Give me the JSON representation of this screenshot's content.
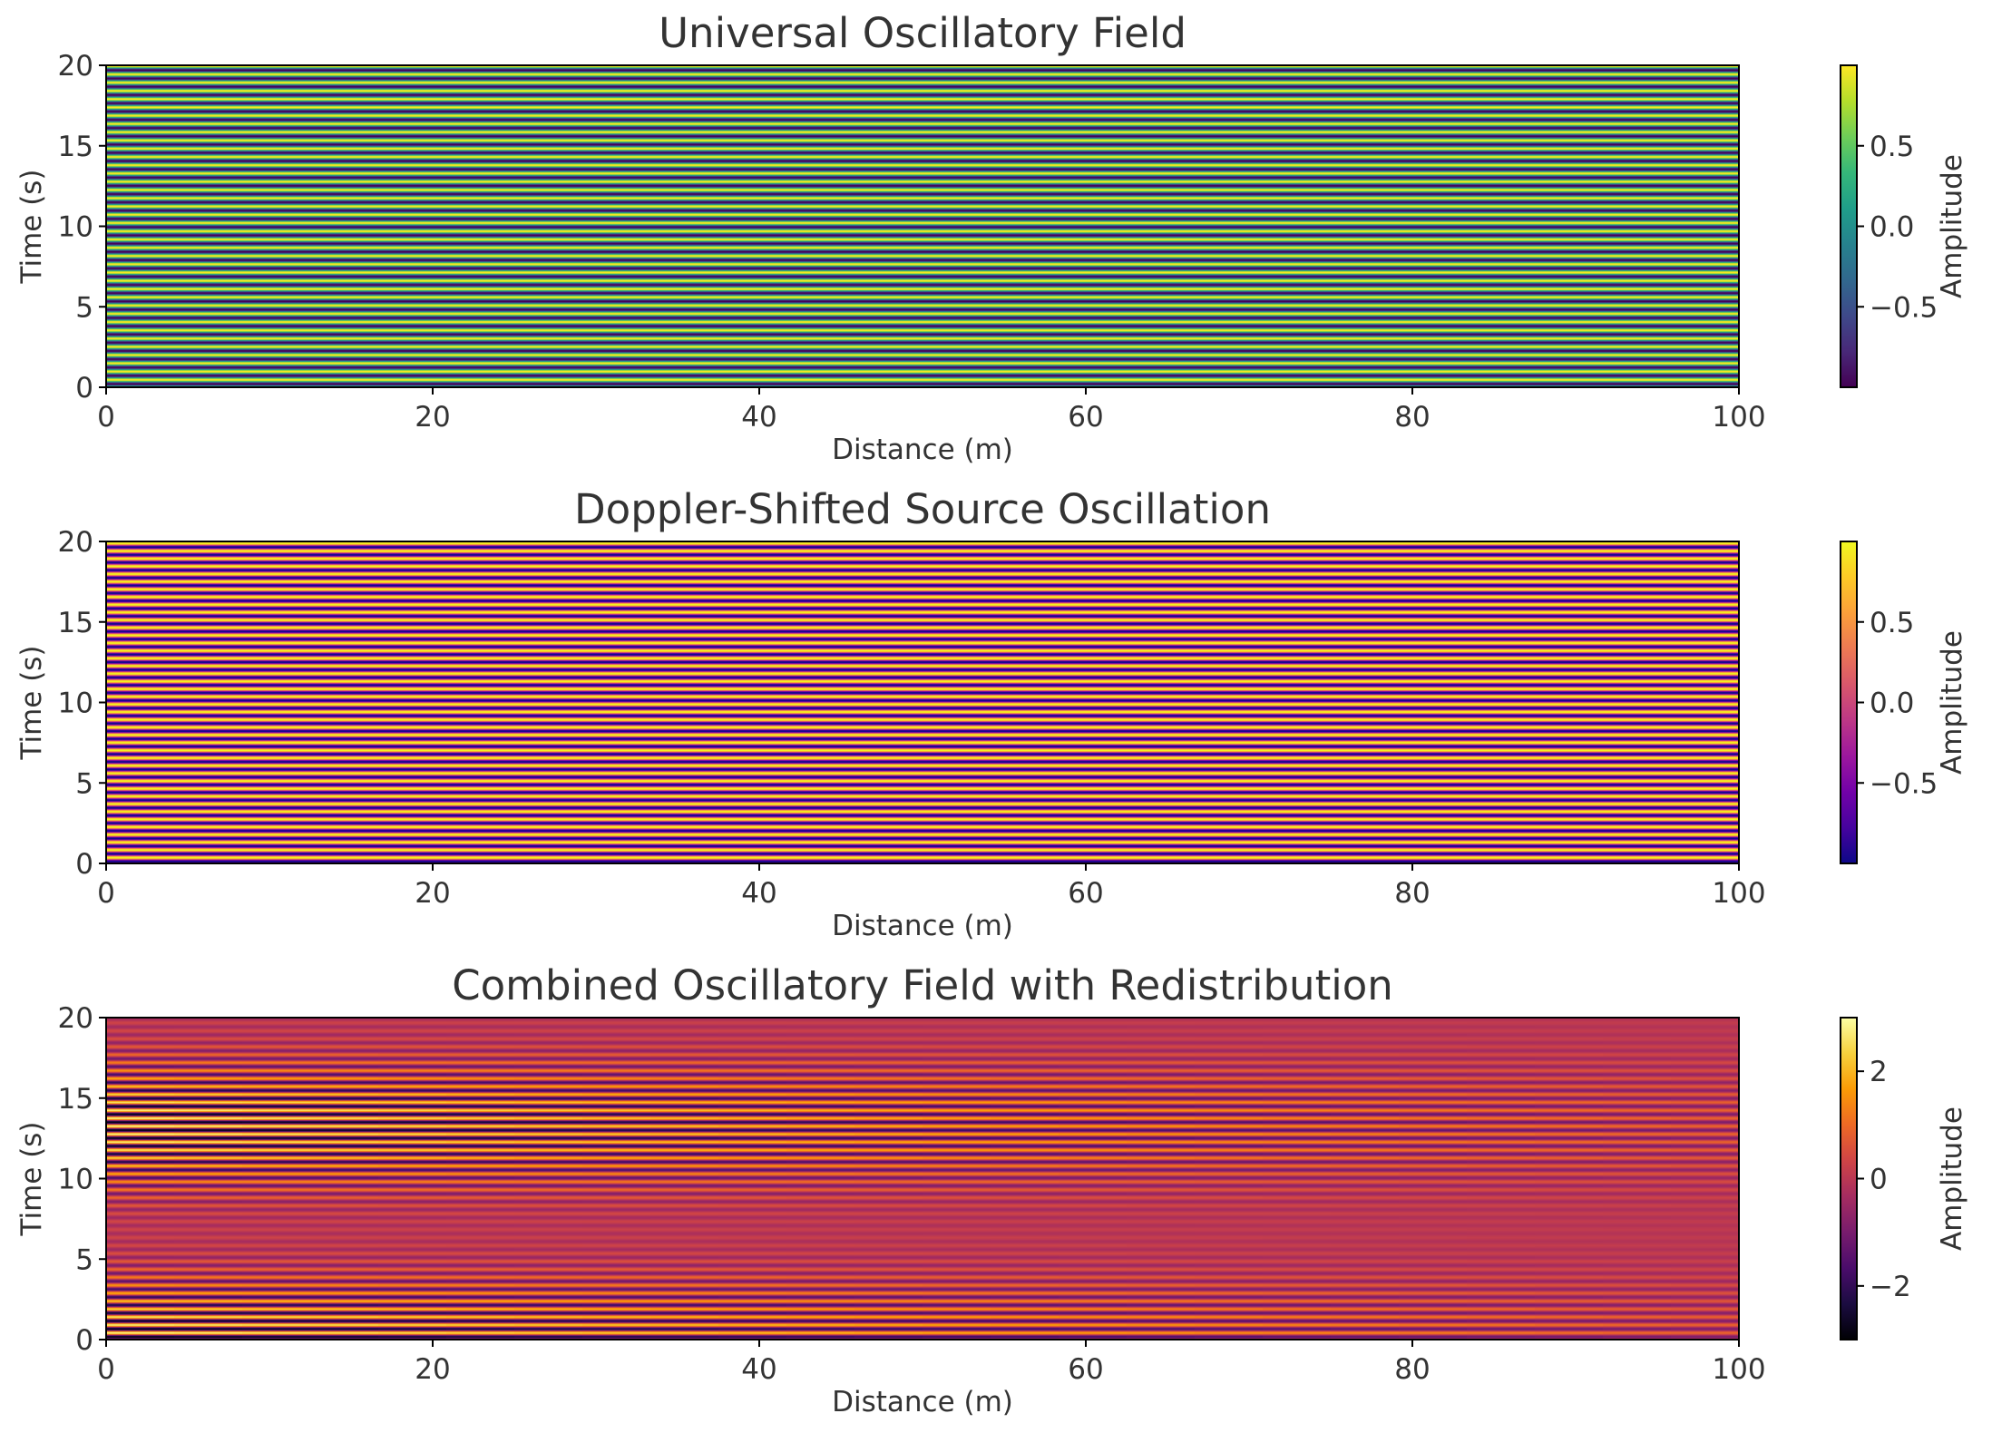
{
  "chart_data": [
    {
      "type": "heatmap",
      "title": "Universal Oscillatory Field",
      "xlabel": "Distance (m)",
      "ylabel": "Time (s)",
      "xlim": [
        0,
        100
      ],
      "ylim": [
        0,
        20
      ],
      "xticks": [
        0,
        20,
        40,
        60,
        80,
        100
      ],
      "yticks": [
        0,
        5,
        10,
        15,
        20
      ],
      "xtick_labels": [
        "0",
        "20",
        "40",
        "60",
        "80",
        "100"
      ],
      "ytick_labels": [
        "0",
        "5",
        "10",
        "15",
        "20"
      ],
      "colormap": "viridis",
      "colorbar": {
        "label": "Amplitude",
        "range": [
          -1,
          1
        ],
        "ticks": [
          0.5,
          0.0,
          -0.5
        ],
        "tick_labels": [
          "0.5",
          "0.0",
          "−0.5"
        ]
      },
      "field": {
        "description": "horizontal bands: amplitude varies with time only",
        "band_cycles": 39,
        "amplitude": 1,
        "phase_offset": 0.2,
        "decay_along_distance": 0
      }
    },
    {
      "type": "heatmap",
      "title": "Doppler-Shifted Source Oscillation",
      "xlabel": "Distance (m)",
      "ylabel": "Time (s)",
      "xlim": [
        0,
        100
      ],
      "ylim": [
        0,
        20
      ],
      "xticks": [
        0,
        20,
        40,
        60,
        80,
        100
      ],
      "yticks": [
        0,
        5,
        10,
        15,
        20
      ],
      "xtick_labels": [
        "0",
        "20",
        "40",
        "60",
        "80",
        "100"
      ],
      "ytick_labels": [
        "0",
        "5",
        "10",
        "15",
        "20"
      ],
      "colormap": "plasma",
      "colorbar": {
        "label": "Amplitude",
        "range": [
          -1,
          1
        ],
        "ticks": [
          0.5,
          0.0,
          -0.5
        ],
        "tick_labels": [
          "0.5",
          "0.0",
          "−0.5"
        ]
      },
      "field": {
        "description": "horizontal bands: amplitude varies with time only",
        "band_cycles": 42,
        "amplitude": 1,
        "phase_offset": 1.1,
        "decay_along_distance": 0
      }
    },
    {
      "type": "heatmap",
      "title": "Combined Oscillatory Field with Redistribution",
      "xlabel": "Distance (m)",
      "ylabel": "Time (s)",
      "xlim": [
        0,
        100
      ],
      "ylim": [
        0,
        20
      ],
      "xticks": [
        0,
        20,
        40,
        60,
        80,
        100
      ],
      "yticks": [
        0,
        5,
        10,
        15,
        20
      ],
      "xtick_labels": [
        "0",
        "20",
        "40",
        "60",
        "80",
        "100"
      ],
      "ytick_labels": [
        "0",
        "5",
        "10",
        "15",
        "20"
      ],
      "colormap": "inferno",
      "colorbar": {
        "label": "Amplitude",
        "range": [
          -3,
          3
        ],
        "ticks": [
          2,
          0,
          -2
        ],
        "tick_labels": [
          "2",
          "0",
          "−2"
        ]
      },
      "field": {
        "description": "beating bands whose contrast fades with distance",
        "band_cycles": 40.5,
        "beat_cycles": 1.5,
        "amplitude": 2.9,
        "phase_offset": 0.6,
        "decay_along_distance": 0.7
      }
    }
  ]
}
